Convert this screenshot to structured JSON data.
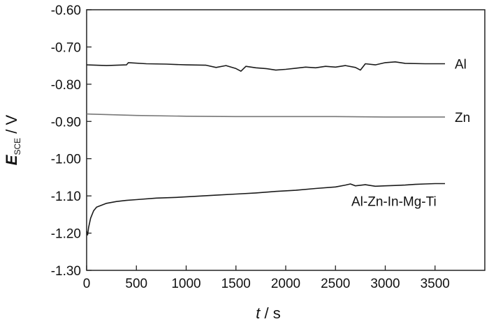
{
  "chart_data": {
    "type": "line",
    "xlabel_italic": "t",
    "xlabel_rest": " / s",
    "ylabel_main": "E",
    "ylabel_sub": "SCE",
    "ylabel_rest": " / V",
    "xlim": [
      0,
      4000
    ],
    "ylim": [
      -1.3,
      -0.6
    ],
    "x_ticks": [
      0,
      500,
      1000,
      1500,
      2000,
      2500,
      3000,
      3500
    ],
    "x_tick_labels": [
      "0",
      "500",
      "1000",
      "1500",
      "2000",
      "2500",
      "3000",
      "3500"
    ],
    "y_ticks": [
      -0.6,
      -0.7,
      -0.8,
      -0.9,
      -1.0,
      -1.1,
      -1.2,
      -1.3
    ],
    "y_tick_labels": [
      "-0.60",
      "-0.70",
      "-0.80",
      "-0.90",
      "-1.00",
      "-1.10",
      "-1.20",
      "-1.30"
    ],
    "grid": false,
    "series": [
      {
        "name": "Al",
        "color": "#1a1a1a",
        "x": [
          0,
          200,
          400,
          420,
          600,
          800,
          1000,
          1200,
          1300,
          1400,
          1500,
          1550,
          1600,
          1700,
          1800,
          1900,
          2000,
          2100,
          2200,
          2300,
          2400,
          2500,
          2600,
          2700,
          2750,
          2800,
          2900,
          3000,
          3100,
          3200,
          3400,
          3600
        ],
        "y": [
          -0.748,
          -0.75,
          -0.748,
          -0.742,
          -0.745,
          -0.746,
          -0.748,
          -0.749,
          -0.755,
          -0.75,
          -0.758,
          -0.765,
          -0.752,
          -0.756,
          -0.758,
          -0.762,
          -0.76,
          -0.757,
          -0.754,
          -0.756,
          -0.752,
          -0.754,
          -0.75,
          -0.755,
          -0.762,
          -0.745,
          -0.748,
          -0.742,
          -0.74,
          -0.744,
          -0.745,
          -0.745
        ]
      },
      {
        "name": "Zn",
        "color": "#777777",
        "x": [
          0,
          500,
          1000,
          1500,
          2000,
          2500,
          3000,
          3600
        ],
        "y": [
          -0.88,
          -0.884,
          -0.886,
          -0.887,
          -0.887,
          -0.887,
          -0.888,
          -0.888
        ],
        "label": "Zn"
      },
      {
        "name": "Al-Zn-In-Mg-Ti",
        "color": "#1a1a1a",
        "x": [
          0,
          10,
          20,
          40,
          70,
          100,
          150,
          200,
          300,
          400,
          500,
          700,
          900,
          1100,
          1300,
          1500,
          1700,
          1900,
          2100,
          2300,
          2500,
          2600,
          2650,
          2700,
          2800,
          2900,
          3000,
          3100,
          3200,
          3300,
          3400,
          3500,
          3600
        ],
        "y": [
          -1.195,
          -1.205,
          -1.185,
          -1.16,
          -1.14,
          -1.13,
          -1.125,
          -1.12,
          -1.115,
          -1.112,
          -1.11,
          -1.106,
          -1.104,
          -1.101,
          -1.098,
          -1.095,
          -1.092,
          -1.088,
          -1.085,
          -1.08,
          -1.076,
          -1.071,
          -1.068,
          -1.073,
          -1.07,
          -1.074,
          -1.073,
          -1.072,
          -1.071,
          -1.069,
          -1.068,
          -1.067,
          -1.067
        ]
      }
    ]
  }
}
